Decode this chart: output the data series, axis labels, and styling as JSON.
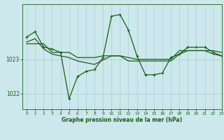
{
  "title": "Graphe pression niveau de la mer (hPa)",
  "bg_color": "#cce8ec",
  "grid_color": "#aacdd4",
  "line_color": "#1a5c1a",
  "xlim": [
    -0.5,
    23
  ],
  "ylim": [
    1021.55,
    1024.6
  ],
  "yticks": [
    1022,
    1023
  ],
  "xticks": [
    0,
    1,
    2,
    3,
    4,
    5,
    6,
    7,
    8,
    9,
    10,
    11,
    12,
    13,
    14,
    15,
    16,
    17,
    18,
    19,
    20,
    21,
    22,
    23
  ],
  "s1_x": [
    0,
    1,
    2,
    3,
    4,
    5,
    6,
    7,
    8,
    9,
    10,
    11,
    12,
    13,
    14,
    15,
    16,
    17,
    18,
    19,
    20,
    21,
    22,
    23
  ],
  "s1_y": [
    1023.65,
    1023.8,
    1023.35,
    1023.3,
    1023.2,
    1021.85,
    1022.5,
    1022.65,
    1022.7,
    1023.05,
    1024.25,
    1024.3,
    1023.85,
    1023.1,
    1022.55,
    1022.55,
    1022.6,
    1023.05,
    1023.15,
    1023.35,
    1023.35,
    1023.35,
    1023.2,
    1023.1
  ],
  "s2_x": [
    0,
    1,
    2,
    3,
    4,
    5,
    6,
    7,
    8,
    9,
    10,
    11,
    12,
    13,
    14,
    15,
    16,
    17,
    18,
    19,
    20,
    21,
    22,
    23
  ],
  "s2_y": [
    1023.45,
    1023.45,
    1023.45,
    1023.2,
    1023.2,
    1023.2,
    1023.05,
    1023.05,
    1023.05,
    1023.1,
    1023.1,
    1023.1,
    1023.05,
    1023.0,
    1023.0,
    1023.0,
    1023.0,
    1023.0,
    1023.25,
    1023.25,
    1023.25,
    1023.25,
    1023.25,
    1023.2
  ],
  "s3_x": [
    0,
    1,
    2,
    3,
    4,
    5,
    6,
    7,
    8,
    9,
    10,
    11,
    12,
    13,
    14,
    15,
    16,
    17,
    18,
    19,
    20,
    21,
    22,
    23
  ],
  "s3_y": [
    1023.5,
    1023.6,
    1023.3,
    1023.15,
    1023.1,
    1023.05,
    1022.95,
    1022.9,
    1022.85,
    1022.98,
    1023.1,
    1023.1,
    1022.95,
    1022.95,
    1022.95,
    1022.95,
    1022.95,
    1022.95,
    1023.15,
    1023.25,
    1023.25,
    1023.25,
    1023.15,
    1023.1
  ]
}
